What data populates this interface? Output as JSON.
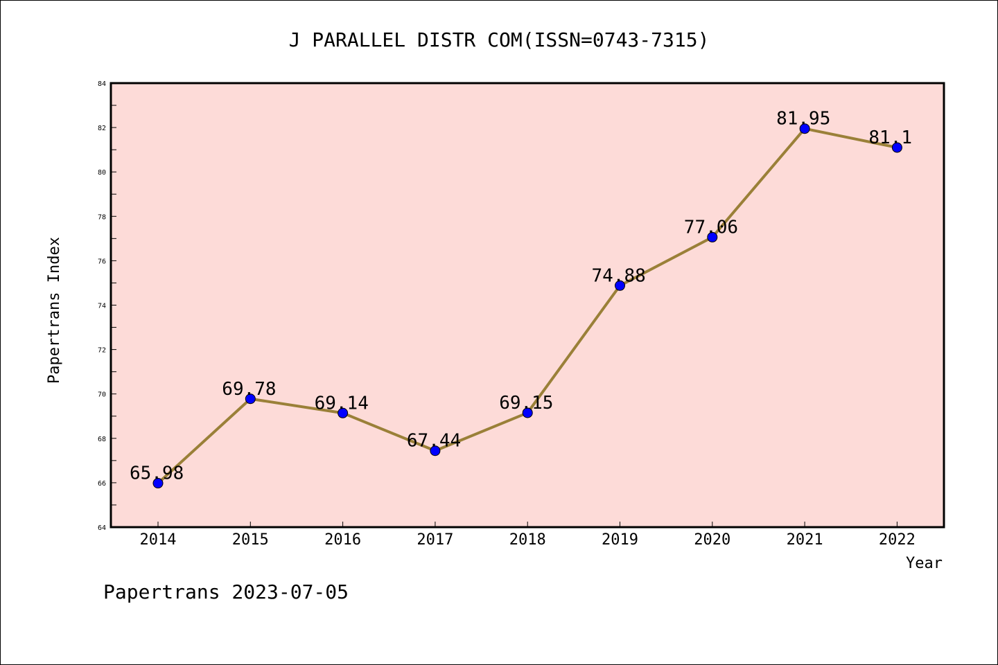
{
  "chart_data": {
    "type": "line",
    "title": "J PARALLEL DISTR COM(ISSN=0743-7315)",
    "xlabel": "Year",
    "ylabel": "Papertrans Index",
    "categories": [
      "2014",
      "2015",
      "2016",
      "2017",
      "2018",
      "2019",
      "2020",
      "2021",
      "2022"
    ],
    "series": [
      {
        "values": [
          65.98,
          69.78,
          69.14,
          67.44,
          69.15,
          74.88,
          77.06,
          81.95,
          81.1
        ],
        "labels": [
          "65.98",
          "69.78",
          "69.14",
          "67.44",
          "69.15",
          "74.88",
          "77.06",
          "81.95",
          "81.1"
        ]
      }
    ],
    "ylim": [
      64,
      84
    ],
    "yticks": [
      "64",
      "66",
      "68",
      "70",
      "72",
      "74",
      "76",
      "78",
      "80",
      "82",
      "84"
    ],
    "grid": false,
    "legend": "none",
    "colors": {
      "plot_background": "#fddbd8",
      "line": "#9a8038",
      "marker": "#0000ff"
    }
  },
  "footer": {
    "text": "Papertrans 2023-07-05"
  }
}
